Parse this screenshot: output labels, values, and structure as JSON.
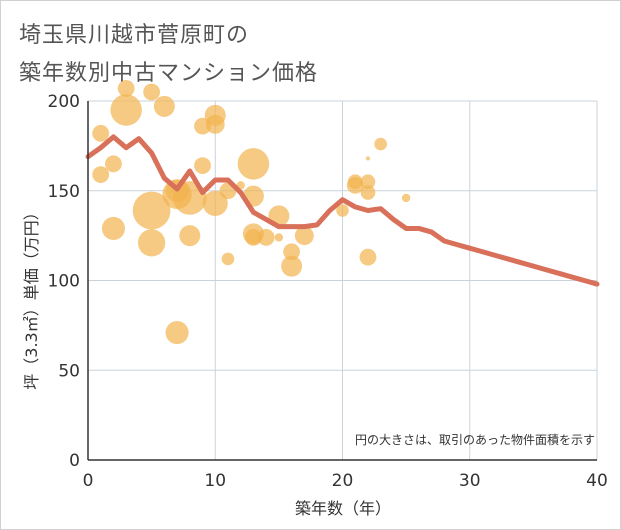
{
  "title_lines": [
    "埼玉県川越市菅原町の",
    "築年数別中古マンション価格"
  ],
  "chart_data": {
    "type": "scatter",
    "xlabel": "築年数（年）",
    "ylabel": "坪（3.3㎡）単価（万円）",
    "xlim": [
      0,
      40
    ],
    "ylim": [
      0,
      200
    ],
    "x_ticks": [
      "0",
      "10",
      "20",
      "30",
      "40"
    ],
    "y_ticks": [
      "0",
      "50",
      "100",
      "150",
      "200"
    ],
    "grid": true,
    "note": "円の大きさは、取引のあった物件面積を示す",
    "colors": {
      "bubble": "#f2b34f",
      "line": "#d9705a",
      "grid": "#c9d3dc",
      "axis": "#333333"
    },
    "bubbles": [
      {
        "x": 1,
        "y": 182,
        "size": 8
      },
      {
        "x": 1,
        "y": 159,
        "size": 8
      },
      {
        "x": 2,
        "y": 165,
        "size": 8
      },
      {
        "x": 2,
        "y": 129,
        "size": 11
      },
      {
        "x": 3,
        "y": 207,
        "size": 8
      },
      {
        "x": 3,
        "y": 195,
        "size": 15
      },
      {
        "x": 5,
        "y": 205,
        "size": 8
      },
      {
        "x": 5,
        "y": 139,
        "size": 18
      },
      {
        "x": 5,
        "y": 121,
        "size": 13
      },
      {
        "x": 6,
        "y": 197,
        "size": 10
      },
      {
        "x": 7,
        "y": 150,
        "size": 11
      },
      {
        "x": 7,
        "y": 148,
        "size": 14
      },
      {
        "x": 7,
        "y": 71,
        "size": 11
      },
      {
        "x": 8,
        "y": 146,
        "size": 16
      },
      {
        "x": 8,
        "y": 125,
        "size": 10
      },
      {
        "x": 9,
        "y": 186,
        "size": 8
      },
      {
        "x": 9,
        "y": 164,
        "size": 8
      },
      {
        "x": 10,
        "y": 192,
        "size": 10
      },
      {
        "x": 10,
        "y": 187,
        "size": 9
      },
      {
        "x": 10,
        "y": 143,
        "size": 12
      },
      {
        "x": 11,
        "y": 150,
        "size": 8
      },
      {
        "x": 11,
        "y": 112,
        "size": 6
      },
      {
        "x": 12,
        "y": 153,
        "size": 4
      },
      {
        "x": 13,
        "y": 165,
        "size": 15
      },
      {
        "x": 13,
        "y": 147,
        "size": 10
      },
      {
        "x": 13,
        "y": 126,
        "size": 10
      },
      {
        "x": 13,
        "y": 124,
        "size": 8
      },
      {
        "x": 14,
        "y": 124,
        "size": 8
      },
      {
        "x": 15,
        "y": 136,
        "size": 10
      },
      {
        "x": 15,
        "y": 124,
        "size": 4
      },
      {
        "x": 16,
        "y": 116,
        "size": 8
      },
      {
        "x": 16,
        "y": 108,
        "size": 10
      },
      {
        "x": 17,
        "y": 125,
        "size": 9
      },
      {
        "x": 20,
        "y": 139,
        "size": 6
      },
      {
        "x": 21,
        "y": 155,
        "size": 7
      },
      {
        "x": 21,
        "y": 153,
        "size": 8
      },
      {
        "x": 22,
        "y": 168,
        "size": 2
      },
      {
        "x": 22,
        "y": 155,
        "size": 7
      },
      {
        "x": 22,
        "y": 149,
        "size": 7
      },
      {
        "x": 22,
        "y": 113,
        "size": 8
      },
      {
        "x": 23,
        "y": 176,
        "size": 6
      },
      {
        "x": 25,
        "y": 146,
        "size": 4
      }
    ],
    "trend": {
      "x": [
        0,
        1,
        2,
        3,
        4,
        5,
        6,
        7,
        8,
        9,
        10,
        11,
        12,
        13,
        14,
        15,
        16,
        17,
        18,
        19,
        20,
        21,
        22,
        23,
        24,
        25,
        26,
        27,
        28,
        29,
        30,
        31,
        32,
        33,
        34,
        35,
        36,
        37,
        38,
        39,
        40
      ],
      "y": [
        169,
        174,
        180,
        174,
        179,
        171,
        157,
        151,
        161,
        149,
        156,
        156,
        149,
        138,
        134,
        130,
        130,
        130,
        131,
        139,
        145,
        141,
        139,
        140,
        134,
        129,
        129,
        127,
        122,
        120,
        118,
        116,
        114,
        112,
        110,
        108,
        106,
        104,
        102,
        100,
        98
      ]
    }
  }
}
